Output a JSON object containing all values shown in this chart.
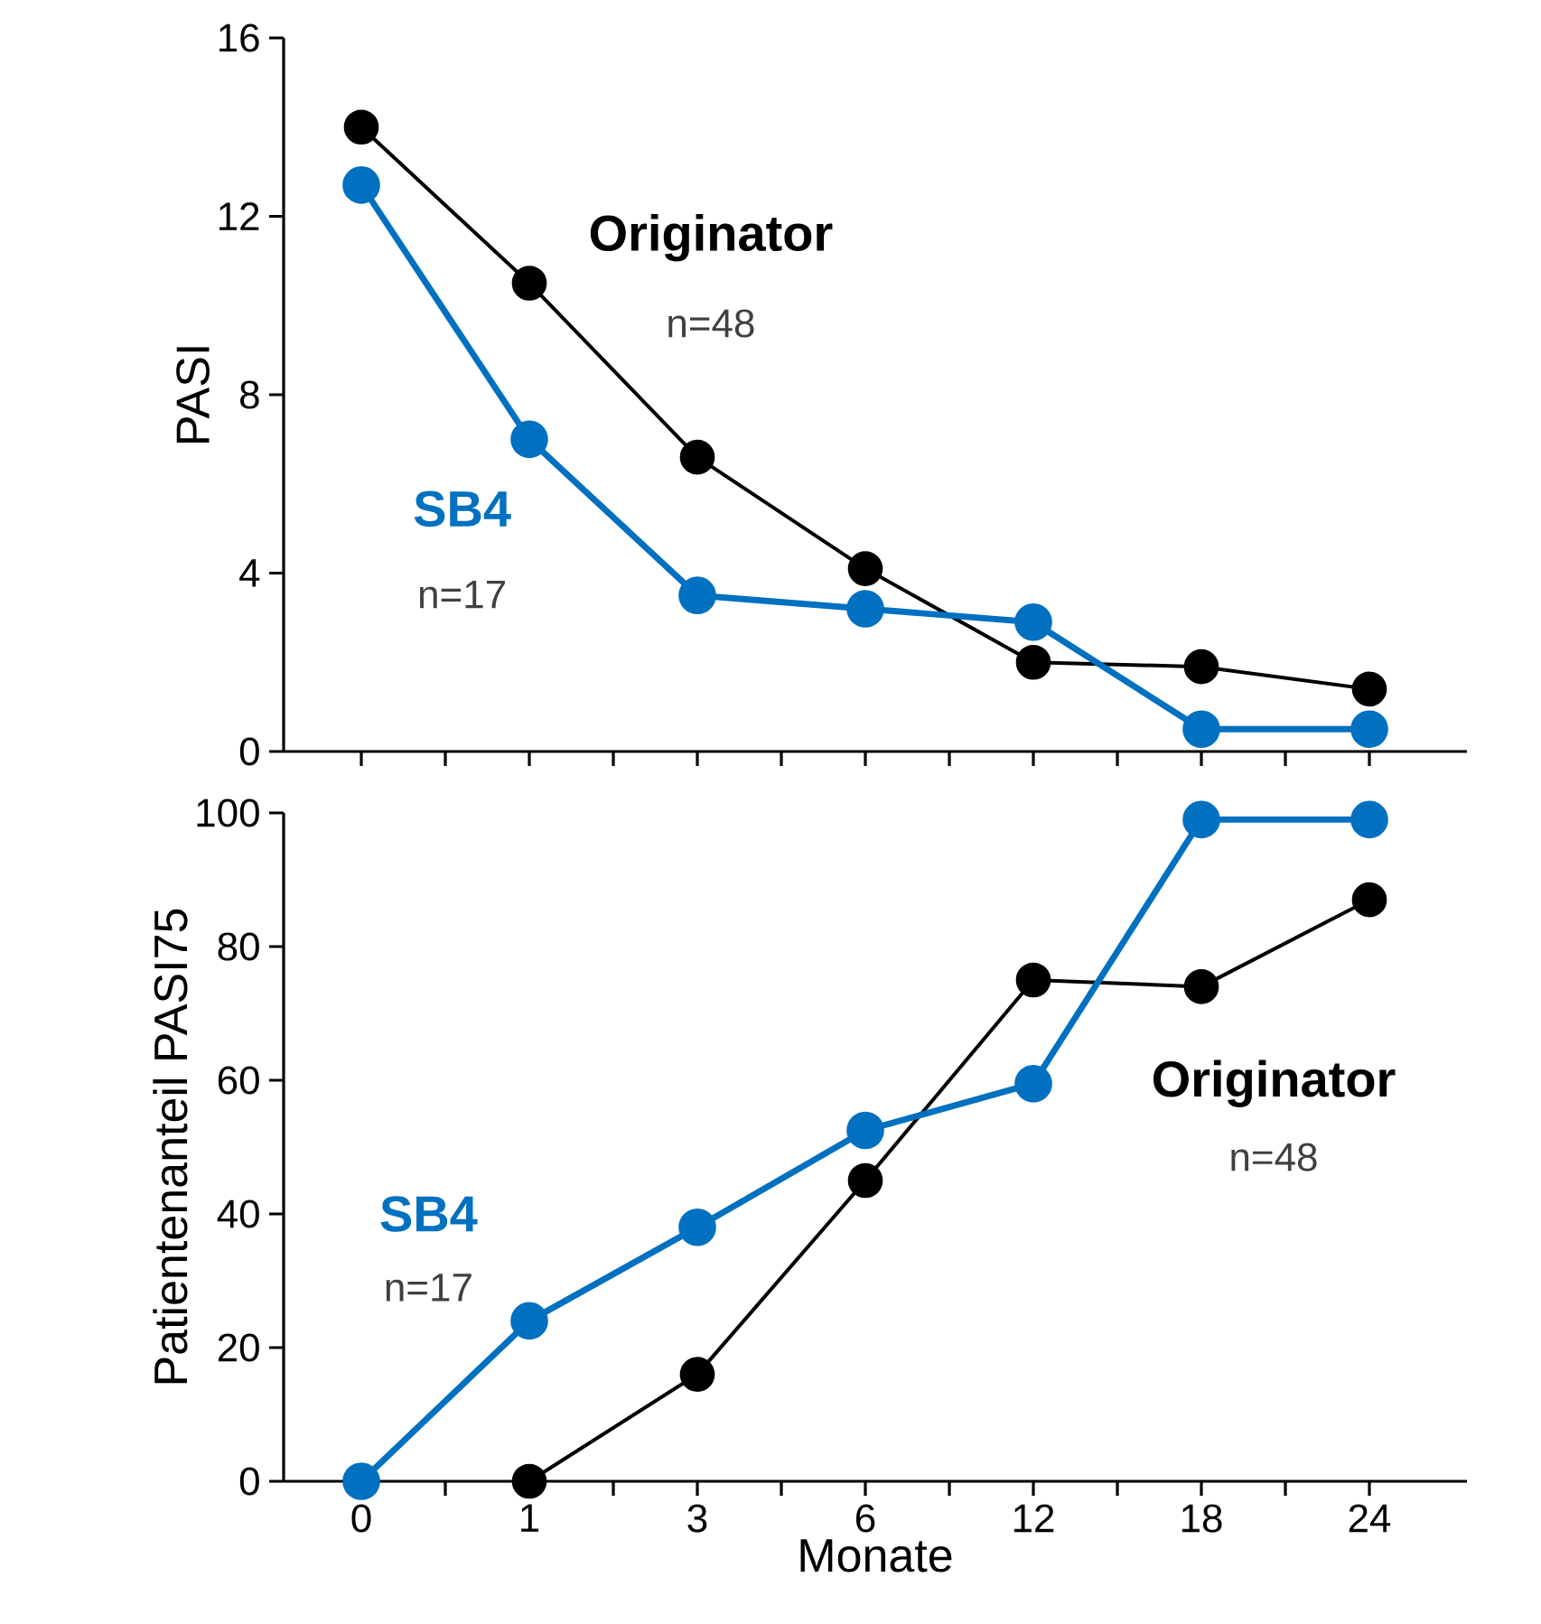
{
  "chart_data": [
    {
      "type": "line",
      "categories": [
        "0",
        "1",
        "3",
        "6",
        "12",
        "18",
        "24"
      ],
      "ylabel": "PASI",
      "ylim": [
        0,
        16
      ],
      "yticks": [
        0,
        4,
        8,
        12,
        16
      ],
      "tick_labels": "y",
      "marker": "circle",
      "line_style": "solid",
      "series": [
        {
          "name": "Originator",
          "color": "#000000",
          "values": [
            14.0,
            10.5,
            6.6,
            4.1,
            2.0,
            1.9,
            1.4
          ]
        },
        {
          "name": "SB4",
          "color": "#0070c0",
          "values": [
            12.7,
            7.0,
            3.5,
            3.2,
            2.9,
            0.5,
            0.5
          ]
        }
      ],
      "annotations": [
        "n=48",
        "n=17"
      ]
    },
    {
      "type": "line",
      "categories": [
        "0",
        "1",
        "3",
        "6",
        "12",
        "18",
        "24"
      ],
      "xlabel": "Monate",
      "ylabel": "Patientenanteil PASI75",
      "ylim": [
        0,
        100
      ],
      "yticks": [
        0,
        20,
        40,
        60,
        80,
        100
      ],
      "marker": "circle",
      "line_style": "solid",
      "series": [
        {
          "name": "Originator",
          "color": "#000000",
          "values": [
            null,
            0,
            16,
            45,
            75,
            74,
            87
          ]
        },
        {
          "name": "SB4",
          "color": "#0070c0",
          "values": [
            0,
            24,
            38,
            52.5,
            59.5,
            99,
            99
          ]
        }
      ],
      "annotations": [
        "n=48",
        "n=17"
      ]
    }
  ]
}
